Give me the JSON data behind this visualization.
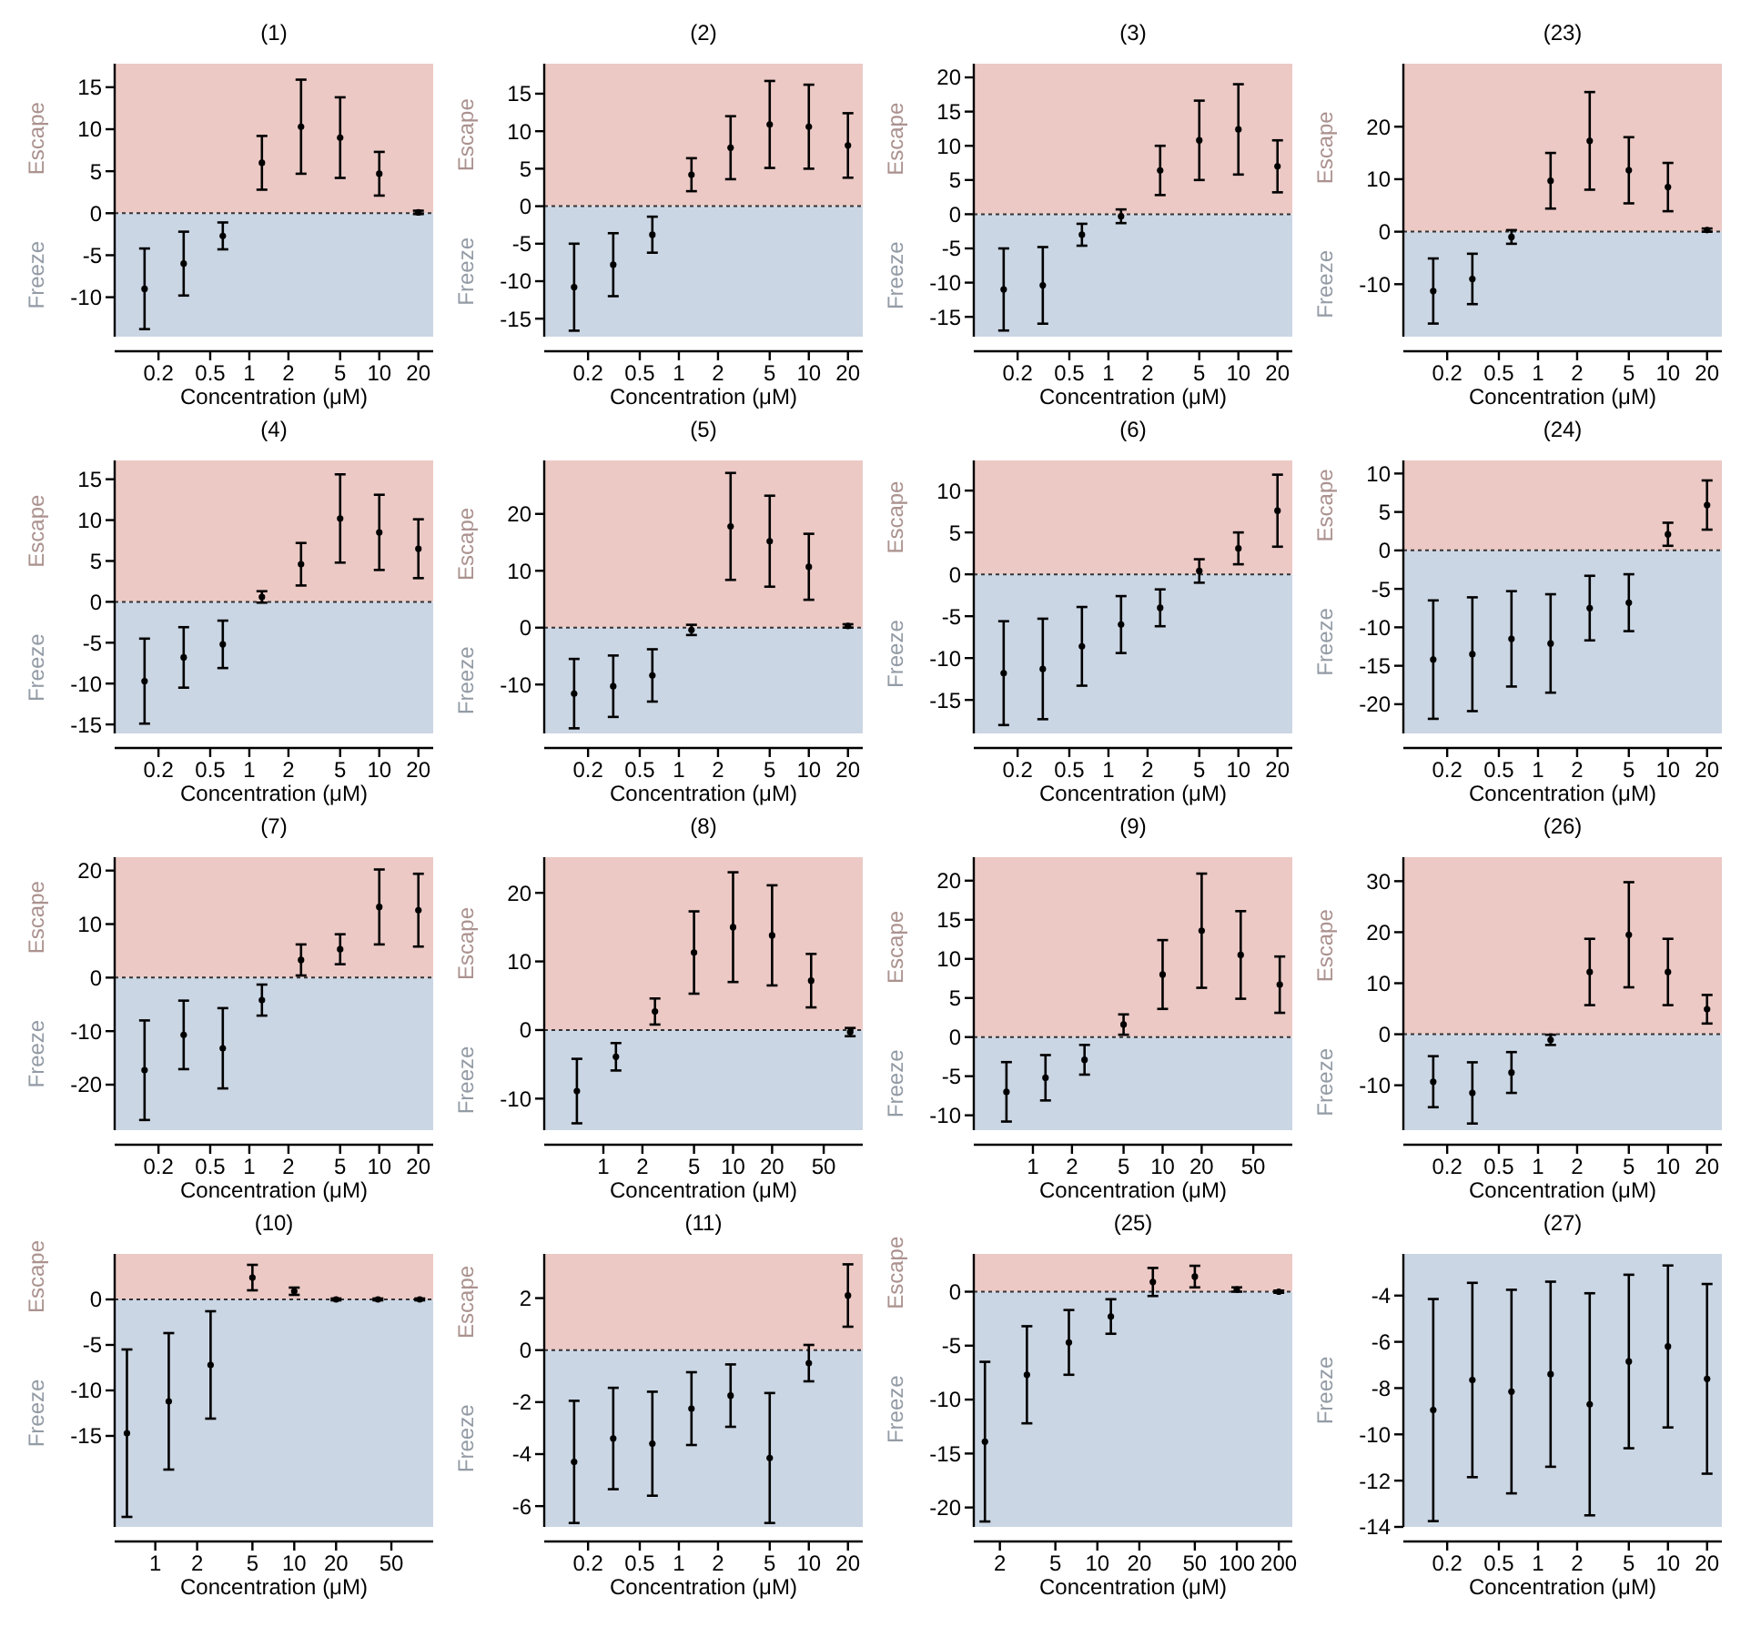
{
  "chart_data": [
    {
      "type": "scatter",
      "title": "(1)",
      "xlabel": "Concentration (μM)",
      "log": "x",
      "marker": "circle",
      "color": "#000000",
      "x": [
        0.15625,
        0.3125,
        0.625,
        1.25,
        2.5,
        5,
        10,
        20
      ],
      "values": [
        -9,
        -6,
        -2.7,
        6,
        10.3,
        9,
        4.7,
        0.1
      ],
      "errors": [
        4.8,
        3.8,
        1.6,
        3.2,
        5.6,
        4.8,
        2.6,
        0.2
      ],
      "xlim": [
        0.092,
        26
      ],
      "ylim": [
        -14.7,
        17.8
      ],
      "xticks": [
        0.2,
        0.5,
        1,
        2,
        5,
        10,
        20
      ],
      "yticks": [
        -10,
        -5,
        0,
        5,
        10,
        15
      ],
      "bands": [
        {
          "axis": "y",
          "from": 0,
          "to": 17.8,
          "label": "Escape",
          "color": "#ecc9c5"
        },
        {
          "axis": "y",
          "from": -14.7,
          "to": 0,
          "label": "Freeze",
          "color": "#cbd6e4"
        }
      ],
      "ref_lines": [
        {
          "axis": "y",
          "value": 0,
          "line_style": "dotted"
        }
      ]
    },
    {
      "type": "scatter",
      "title": "(2)",
      "xlabel": "Concentration (μM)",
      "log": "x",
      "marker": "circle",
      "color": "#000000",
      "x": [
        0.15625,
        0.3125,
        0.625,
        1.25,
        2.5,
        5,
        10,
        20
      ],
      "values": [
        -10.8,
        -7.8,
        -3.8,
        4.2,
        7.8,
        10.9,
        10.6,
        8.1
      ],
      "errors": [
        5.8,
        4.2,
        2.4,
        2.2,
        4.2,
        5.8,
        5.6,
        4.3
      ],
      "xlim": [
        0.092,
        26
      ],
      "ylim": [
        -17.4,
        19
      ],
      "xticks": [
        0.2,
        0.5,
        1,
        2,
        5,
        10,
        20
      ],
      "yticks": [
        -15,
        -10,
        -5,
        0,
        5,
        10,
        15
      ],
      "bands": [
        {
          "axis": "y",
          "from": 0,
          "to": 19,
          "label": "Escape",
          "color": "#ecc9c5"
        },
        {
          "axis": "y",
          "from": -17.4,
          "to": 0,
          "label": "Freeze",
          "color": "#cbd6e4"
        }
      ],
      "ref_lines": [
        {
          "axis": "y",
          "value": 0,
          "line_style": "dotted"
        }
      ]
    },
    {
      "type": "scatter",
      "title": "(3)",
      "xlabel": "Concentration (μM)",
      "log": "x",
      "marker": "circle",
      "color": "#000000",
      "x": [
        0.15625,
        0.3125,
        0.625,
        1.25,
        2.5,
        5,
        10,
        20
      ],
      "values": [
        -11,
        -10.4,
        -3,
        -0.3,
        6.4,
        10.8,
        12.4,
        7
      ],
      "errors": [
        6,
        5.6,
        1.6,
        1,
        3.6,
        5.8,
        6.6,
        3.8
      ],
      "xlim": [
        0.092,
        26
      ],
      "ylim": [
        -17.9,
        22
      ],
      "xticks": [
        0.2,
        0.5,
        1,
        2,
        5,
        10,
        20
      ],
      "yticks": [
        -15,
        -10,
        -5,
        0,
        5,
        10,
        15,
        20
      ],
      "bands": [
        {
          "axis": "y",
          "from": 0,
          "to": 22,
          "label": "Escape",
          "color": "#ecc9c5"
        },
        {
          "axis": "y",
          "from": -17.9,
          "to": 0,
          "label": "Freeze",
          "color": "#cbd6e4"
        }
      ],
      "ref_lines": [
        {
          "axis": "y",
          "value": 0,
          "line_style": "dotted"
        }
      ]
    },
    {
      "type": "scatter",
      "title": "(23)",
      "xlabel": "Concentration (μM)",
      "log": "x",
      "marker": "circle",
      "color": "#000000",
      "x": [
        0.15625,
        0.3125,
        0.625,
        1.25,
        2.5,
        5,
        10,
        20
      ],
      "values": [
        -11.3,
        -9,
        -1,
        9.7,
        17.3,
        11.7,
        8.5,
        0.3
      ],
      "errors": [
        6.2,
        4.8,
        1.3,
        5.3,
        9.3,
        6.3,
        4.6,
        0.3
      ],
      "xlim": [
        0.092,
        26
      ],
      "ylim": [
        -20,
        32
      ],
      "xticks": [
        0.2,
        0.5,
        1,
        2,
        5,
        10,
        20
      ],
      "yticks": [
        -10,
        0,
        10,
        20
      ],
      "bands": [
        {
          "axis": "y",
          "from": 0,
          "to": 32,
          "label": "Escape",
          "color": "#ecc9c5"
        },
        {
          "axis": "y",
          "from": -20,
          "to": 0,
          "label": "Freeze",
          "color": "#cbd6e4"
        }
      ],
      "ref_lines": [
        {
          "axis": "y",
          "value": 0,
          "line_style": "dotted"
        }
      ]
    },
    {
      "type": "scatter",
      "title": "(4)",
      "xlabel": "Concentration (μM)",
      "log": "x",
      "marker": "circle",
      "color": "#000000",
      "x": [
        0.15625,
        0.3125,
        0.625,
        1.25,
        2.5,
        5,
        10,
        20
      ],
      "values": [
        -9.7,
        -6.8,
        -5.2,
        0.6,
        4.6,
        10.2,
        8.5,
        6.5
      ],
      "errors": [
        5.2,
        3.7,
        2.9,
        0.7,
        2.6,
        5.4,
        4.6,
        3.6
      ],
      "xlim": [
        0.092,
        26
      ],
      "ylim": [
        -16.1,
        17.3
      ],
      "xticks": [
        0.2,
        0.5,
        1,
        2,
        5,
        10,
        20
      ],
      "yticks": [
        -15,
        -10,
        -5,
        0,
        5,
        10,
        15
      ],
      "bands": [
        {
          "axis": "y",
          "from": 0,
          "to": 17.3,
          "label": "Escape",
          "color": "#ecc9c5"
        },
        {
          "axis": "y",
          "from": -16.1,
          "to": 0,
          "label": "Freeze",
          "color": "#cbd6e4"
        }
      ],
      "ref_lines": [
        {
          "axis": "y",
          "value": 0,
          "line_style": "dotted"
        }
      ]
    },
    {
      "type": "scatter",
      "title": "(5)",
      "xlabel": "Concentration (μM)",
      "log": "x",
      "marker": "circle",
      "color": "#000000",
      "x": [
        0.15625,
        0.3125,
        0.625,
        1.25,
        2.5,
        5,
        10,
        20
      ],
      "values": [
        -11.6,
        -10.3,
        -8.4,
        -0.4,
        17.8,
        15.2,
        10.7,
        0.3
      ],
      "errors": [
        6.1,
        5.4,
        4.6,
        0.9,
        9.4,
        8,
        5.8,
        0.3
      ],
      "xlim": [
        0.092,
        26
      ],
      "ylim": [
        -18.6,
        29.4
      ],
      "xticks": [
        0.2,
        0.5,
        1,
        2,
        5,
        10,
        20
      ],
      "yticks": [
        -10,
        0,
        10,
        20
      ],
      "bands": [
        {
          "axis": "y",
          "from": 0,
          "to": 29.4,
          "label": "Escape",
          "color": "#ecc9c5"
        },
        {
          "axis": "y",
          "from": -18.6,
          "to": 0,
          "label": "Freeze",
          "color": "#cbd6e4"
        }
      ],
      "ref_lines": [
        {
          "axis": "y",
          "value": 0,
          "line_style": "dotted"
        }
      ]
    },
    {
      "type": "scatter",
      "title": "(6)",
      "xlabel": "Concentration (μM)",
      "log": "x",
      "marker": "circle",
      "color": "#000000",
      "x": [
        0.15625,
        0.3125,
        0.625,
        1.25,
        2.5,
        5,
        10,
        20
      ],
      "values": [
        -11.8,
        -11.3,
        -8.6,
        -6,
        -4,
        0.4,
        3.1,
        7.6
      ],
      "errors": [
        6.2,
        6,
        4.7,
        3.4,
        2.2,
        1.4,
        1.9,
        4.3
      ],
      "xlim": [
        0.092,
        26
      ],
      "ylim": [
        -19,
        13.6
      ],
      "xticks": [
        0.2,
        0.5,
        1,
        2,
        5,
        10,
        20
      ],
      "yticks": [
        -15,
        -10,
        -5,
        0,
        5,
        10
      ],
      "bands": [
        {
          "axis": "y",
          "from": 0,
          "to": 13.6,
          "label": "Escape",
          "color": "#ecc9c5"
        },
        {
          "axis": "y",
          "from": -19,
          "to": 0,
          "label": "Freeze",
          "color": "#cbd6e4"
        }
      ],
      "ref_lines": [
        {
          "axis": "y",
          "value": 0,
          "line_style": "dotted"
        }
      ]
    },
    {
      "type": "scatter",
      "title": "(24)",
      "xlabel": "Concentration (μM)",
      "log": "x",
      "marker": "circle",
      "color": "#000000",
      "x": [
        0.15625,
        0.3125,
        0.625,
        1.25,
        2.5,
        5,
        10,
        20
      ],
      "values": [
        -14.2,
        -13.5,
        -11.5,
        -12.1,
        -7.5,
        -6.8,
        2.1,
        5.9
      ],
      "errors": [
        7.7,
        7.4,
        6.2,
        6.4,
        4.2,
        3.7,
        1.5,
        3.2
      ],
      "xlim": [
        0.092,
        26
      ],
      "ylim": [
        -23.8,
        11.7
      ],
      "xticks": [
        0.2,
        0.5,
        1,
        2,
        5,
        10,
        20
      ],
      "yticks": [
        -20,
        -15,
        -10,
        -5,
        0,
        5,
        10
      ],
      "bands": [
        {
          "axis": "y",
          "from": 0,
          "to": 11.7,
          "label": "Escape",
          "color": "#ecc9c5"
        },
        {
          "axis": "y",
          "from": -23.8,
          "to": 0,
          "label": "Freeze",
          "color": "#cbd6e4"
        }
      ],
      "ref_lines": [
        {
          "axis": "y",
          "value": 0,
          "line_style": "dotted"
        }
      ]
    },
    {
      "type": "scatter",
      "title": "(7)",
      "xlabel": "Concentration (μM)",
      "log": "x",
      "marker": "circle",
      "color": "#000000",
      "x": [
        0.15625,
        0.3125,
        0.625,
        1.25,
        2.5,
        5,
        10,
        20
      ],
      "values": [
        -17.3,
        -10.7,
        -13.2,
        -4.2,
        3.3,
        5.3,
        13.2,
        12.6
      ],
      "errors": [
        9.3,
        6.4,
        7.5,
        2.9,
        2.9,
        2.8,
        7,
        6.8
      ],
      "xlim": [
        0.092,
        26
      ],
      "ylim": [
        -28.5,
        22.5
      ],
      "xticks": [
        0.2,
        0.5,
        1,
        2,
        5,
        10,
        20
      ],
      "yticks": [
        -20,
        -10,
        0,
        10,
        20
      ],
      "bands": [
        {
          "axis": "y",
          "from": 0,
          "to": 22.5,
          "label": "Escape",
          "color": "#ecc9c5"
        },
        {
          "axis": "y",
          "from": -28.5,
          "to": 0,
          "label": "Freeze",
          "color": "#cbd6e4"
        }
      ],
      "ref_lines": [
        {
          "axis": "y",
          "value": 0,
          "line_style": "dotted"
        }
      ]
    },
    {
      "type": "scatter",
      "title": "(8)",
      "xlabel": "Concentration (μM)",
      "log": "x",
      "marker": "circle",
      "color": "#000000",
      "x": [
        0.625,
        1.25,
        2.5,
        5,
        10,
        20,
        40,
        80
      ],
      "values": [
        -8.9,
        -3.9,
        2.7,
        11.3,
        15,
        13.8,
        7.2,
        -0.3
      ],
      "errors": [
        4.7,
        2,
        1.9,
        6,
        8,
        7.3,
        3.9,
        0.6
      ],
      "xlim": [
        0.35,
        100
      ],
      "ylim": [
        -14.6,
        25.2
      ],
      "xticks": [
        1,
        2,
        5,
        10,
        20,
        50
      ],
      "yticks": [
        -10,
        0,
        10,
        20
      ],
      "bands": [
        {
          "axis": "y",
          "from": 0,
          "to": 25.2,
          "label": "Escape",
          "color": "#ecc9c5"
        },
        {
          "axis": "y",
          "from": -14.6,
          "to": 0,
          "label": "Freeze",
          "color": "#cbd6e4"
        }
      ],
      "ref_lines": [
        {
          "axis": "y",
          "value": 0,
          "line_style": "dotted"
        }
      ]
    },
    {
      "type": "scatter",
      "title": "(9)",
      "xlabel": "Concentration (μM)",
      "log": "x",
      "marker": "circle",
      "color": "#000000",
      "x": [
        0.625,
        1.25,
        2.5,
        5,
        10,
        20,
        40,
        80
      ],
      "values": [
        -7,
        -5.2,
        -2.9,
        1.6,
        8,
        13.6,
        10.5,
        6.7
      ],
      "errors": [
        3.8,
        2.9,
        1.9,
        1.3,
        4.4,
        7.3,
        5.6,
        3.6
      ],
      "xlim": [
        0.35,
        100
      ],
      "ylim": [
        -11.9,
        23
      ],
      "xticks": [
        1,
        2,
        5,
        10,
        20,
        50
      ],
      "yticks": [
        -10,
        -5,
        0,
        5,
        10,
        15,
        20
      ],
      "bands": [
        {
          "axis": "y",
          "from": 0,
          "to": 23,
          "label": "Escape",
          "color": "#ecc9c5"
        },
        {
          "axis": "y",
          "from": -11.9,
          "to": 0,
          "label": "Freeze",
          "color": "#cbd6e4"
        }
      ],
      "ref_lines": [
        {
          "axis": "y",
          "value": 0,
          "line_style": "dotted"
        }
      ]
    },
    {
      "type": "scatter",
      "title": "(26)",
      "xlabel": "Concentration (μM)",
      "log": "x",
      "marker": "circle",
      "color": "#000000",
      "x": [
        0.15625,
        0.3125,
        0.625,
        1.25,
        2.5,
        5,
        10,
        20
      ],
      "values": [
        -9.3,
        -11.5,
        -7.5,
        -1.1,
        12.2,
        19.5,
        12.2,
        4.9
      ],
      "errors": [
        5,
        6,
        4,
        1,
        6.5,
        10.3,
        6.5,
        2.8
      ],
      "xlim": [
        0.092,
        26
      ],
      "ylim": [
        -18.8,
        34.7
      ],
      "xticks": [
        0.2,
        0.5,
        1,
        2,
        5,
        10,
        20
      ],
      "yticks": [
        -10,
        0,
        10,
        20,
        30
      ],
      "bands": [
        {
          "axis": "y",
          "from": 0,
          "to": 34.7,
          "label": "Escape",
          "color": "#ecc9c5"
        },
        {
          "axis": "y",
          "from": -18.8,
          "to": 0,
          "label": "Freeze",
          "color": "#cbd6e4"
        }
      ],
      "ref_lines": [
        {
          "axis": "y",
          "value": 0,
          "line_style": "dotted"
        }
      ]
    },
    {
      "type": "scatter",
      "title": "(10)",
      "xlabel": "Concentration (μM)",
      "log": "x",
      "marker": "circle",
      "color": "#000000",
      "x": [
        0.625,
        1.25,
        2.5,
        5,
        10,
        20,
        40,
        80
      ],
      "values": [
        -14.7,
        -11.2,
        -7.2,
        2.4,
        0.9,
        0,
        0,
        0
      ],
      "errors": [
        9.2,
        7.5,
        5.9,
        1.4,
        0.4,
        0.1,
        0.1,
        0.1
      ],
      "xlim": [
        0.51,
        100
      ],
      "ylim": [
        -25,
        5
      ],
      "xticks": [
        1,
        2,
        5,
        10,
        20,
        50
      ],
      "yticks": [
        -15,
        -10,
        -5,
        0
      ],
      "bands": [
        {
          "axis": "y",
          "from": 0,
          "to": 5,
          "label": "Escape",
          "color": "#ecc9c5"
        },
        {
          "axis": "y",
          "from": -25,
          "to": 0,
          "label": "Freeze",
          "color": "#cbd6e4"
        }
      ],
      "ref_lines": [
        {
          "axis": "y",
          "value": 0,
          "line_style": "dotted"
        }
      ]
    },
    {
      "type": "scatter",
      "title": "(11)",
      "xlabel": "Concentration (μM)",
      "log": "x",
      "marker": "circle",
      "color": "#000000",
      "x": [
        0.15625,
        0.3125,
        0.625,
        1.25,
        2.5,
        5,
        10,
        20
      ],
      "values": [
        -4.3,
        -3.4,
        -3.6,
        -2.25,
        -1.75,
        -4.15,
        -0.5,
        2.1
      ],
      "errors": [
        2.35,
        1.95,
        2,
        1.4,
        1.2,
        2.5,
        0.7,
        1.2
      ],
      "xlim": [
        0.092,
        26
      ],
      "ylim": [
        -6.8,
        3.7
      ],
      "xticks": [
        0.2,
        0.5,
        1,
        2,
        5,
        10,
        20
      ],
      "yticks": [
        -6,
        -4,
        -2,
        0,
        2
      ],
      "bands": [
        {
          "axis": "y",
          "from": 0,
          "to": 3.7,
          "label": "Escape",
          "color": "#ecc9c5"
        },
        {
          "axis": "y",
          "from": -6.8,
          "to": 0,
          "label": "Freeze",
          "color": "#cbd6e4"
        }
      ],
      "ref_lines": [
        {
          "axis": "y",
          "value": 0,
          "line_style": "dotted"
        }
      ]
    },
    {
      "type": "scatter",
      "title": "(25)",
      "xlabel": "Concentration (μM)",
      "log": "x",
      "marker": "circle",
      "color": "#000000",
      "x": [
        1.5625,
        3.125,
        6.25,
        12.5,
        25,
        50,
        100,
        200
      ],
      "values": [
        -13.9,
        -7.7,
        -4.7,
        -2.3,
        0.9,
        1.4,
        0.2,
        0
      ],
      "errors": [
        7.4,
        4.5,
        3,
        1.6,
        1.3,
        1,
        0.2,
        0.1
      ],
      "xlim": [
        1.3,
        250
      ],
      "ylim": [
        -21.8,
        3.5
      ],
      "xticks": [
        2,
        5,
        10,
        20,
        50,
        100,
        200
      ],
      "yticks": [
        -20,
        -15,
        -10,
        -5,
        0
      ],
      "bands": [
        {
          "axis": "y",
          "from": 0,
          "to": 3.5,
          "label": "Escape",
          "color": "#ecc9c5"
        },
        {
          "axis": "y",
          "from": -21.8,
          "to": 0,
          "label": "Freeze",
          "color": "#cbd6e4"
        }
      ],
      "ref_lines": [
        {
          "axis": "y",
          "value": 0,
          "line_style": "dotted"
        }
      ]
    },
    {
      "type": "scatter",
      "title": "(27)",
      "xlabel": "Concentration (μM)",
      "log": "x",
      "marker": "circle",
      "color": "#000000",
      "x": [
        0.15625,
        0.3125,
        0.625,
        1.25,
        2.5,
        5,
        10,
        20
      ],
      "values": [
        -8.95,
        -7.65,
        -8.15,
        -7.4,
        -8.7,
        -6.85,
        -6.2,
        -7.6
      ],
      "errors": [
        4.8,
        4.2,
        4.4,
        4,
        4.8,
        3.75,
        3.5,
        4.1
      ],
      "xlim": [
        0.092,
        26
      ],
      "ylim": [
        -14,
        -2.2
      ],
      "xticks": [
        0.2,
        0.5,
        1,
        2,
        5,
        10,
        20
      ],
      "yticks": [
        -14,
        -12,
        -10,
        -8,
        -6,
        -4
      ],
      "bands": [
        {
          "axis": "y",
          "from": -14,
          "to": -2.2,
          "label": "Freeze",
          "color": "#cbd6e4"
        }
      ]
    }
  ]
}
